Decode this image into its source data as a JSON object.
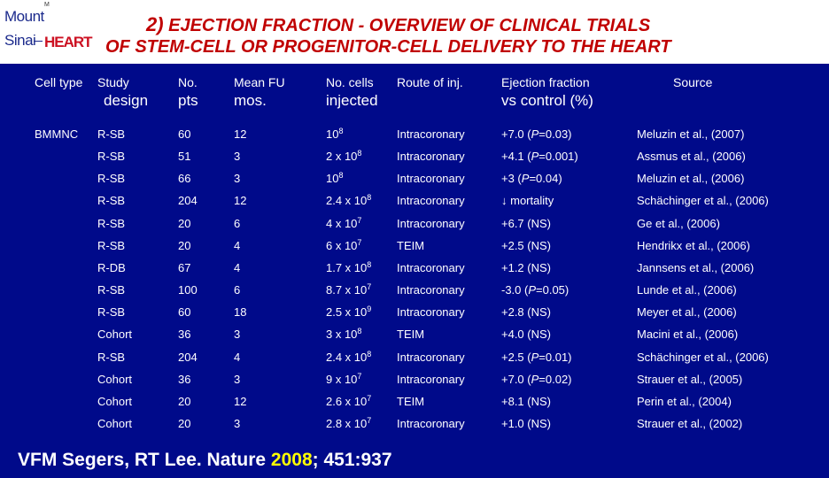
{
  "logo": {
    "trademark": "M",
    "line1": "Mount",
    "line2": "Sinai",
    "brand": "HEART"
  },
  "title": {
    "line1_number": "2)",
    "line1_text": "EJECTION FRACTION - OVERVIEW OF CLINICAL TRIALS",
    "line2": "OF STEM-CELL OR  PROGENITOR-CELL DELIVERY TO THE HEART"
  },
  "columns": {
    "cell_type": "Cell type",
    "study": "Study",
    "study_2": "design",
    "no": "No.",
    "no_2": "pts",
    "mean_fu": "Mean FU",
    "mean_fu_2": "mos.",
    "no_cells": "No. cells",
    "no_cells_2": "injected",
    "route": "Route of inj.",
    "ef": "Ejection fraction",
    "ef_2": "vs control (%)",
    "source": "Source"
  },
  "cell_type_value": "BMMNC",
  "rows": [
    {
      "design": "R-SB",
      "pts": "60",
      "fu": "12",
      "cells_base": "10",
      "cells_exp": "8",
      "route": "Intracoronary",
      "ef_pre": "+7.0 (",
      "ef_p": "P",
      "ef_post": "=0.03)",
      "source": "Meluzin et al., (2007)"
    },
    {
      "design": "R-SB",
      "pts": "51",
      "fu": "3",
      "cells_base": "2 x 10",
      "cells_exp": "8",
      "route": "Intracoronary",
      "ef_pre": "+4.1 (",
      "ef_p": "P",
      "ef_post": "=0.001)",
      "source": "Assmus et al., (2006)"
    },
    {
      "design": "R-SB",
      "pts": "66",
      "fu": "3",
      "cells_base": "10",
      "cells_exp": "8",
      "route": "Intracoronary",
      "ef_pre": "+3 (",
      "ef_p": "P",
      "ef_post": "=0.04)",
      "source": "Meluzin et al., (2006)"
    },
    {
      "design": "R-SB",
      "pts": "204",
      "fu": "12",
      "cells_base": "2.4 x 10",
      "cells_exp": "8",
      "route": "Intracoronary",
      "ef_pre": "↓ mortality",
      "ef_p": "",
      "ef_post": "",
      "source": "Schächinger et al., (2006)"
    },
    {
      "design": "R-SB",
      "pts": "20",
      "fu": "6",
      "cells_base": "4 x 10",
      "cells_exp": "7",
      "route": "Intracoronary",
      "ef_pre": "+6.7 (NS)",
      "ef_p": "",
      "ef_post": "",
      "source": "Ge et al., (2006)"
    },
    {
      "design": "R-SB",
      "pts": "20",
      "fu": "4",
      "cells_base": "6 x 10",
      "cells_exp": "7",
      "route": "TEIM",
      "ef_pre": "+2.5 (NS)",
      "ef_p": "",
      "ef_post": "",
      "source": "Hendrikx et al., (2006)"
    },
    {
      "design": "R-DB",
      "pts": "67",
      "fu": "4",
      "cells_base": "1.7 x 10",
      "cells_exp": "8",
      "route": "Intracoronary",
      "ef_pre": "+1.2 (NS)",
      "ef_p": "",
      "ef_post": "",
      "source": "Jannsens et al., (2006)"
    },
    {
      "design": "R-SB",
      "pts": "100",
      "fu": "6",
      "cells_base": "8.7 x 10",
      "cells_exp": "7",
      "route": "Intracoronary",
      "ef_pre": "-3.0 (",
      "ef_p": "P",
      "ef_post": "=0.05)",
      "source": "Lunde et al., (2006)"
    },
    {
      "design": "R-SB",
      "pts": "60",
      "fu": "18",
      "cells_base": "2.5 x 10",
      "cells_exp": "9",
      "route": "Intracoronary",
      "ef_pre": "+2.8 (NS)",
      "ef_p": "",
      "ef_post": "",
      "source": "Meyer et al., (2006)"
    },
    {
      "design": "Cohort",
      "pts": "36",
      "fu": "3",
      "cells_base": "3 x 10",
      "cells_exp": "8",
      "route": "TEIM",
      "ef_pre": "+4.0 (NS)",
      "ef_p": "",
      "ef_post": "",
      "source": "Macini et al., (2006)"
    },
    {
      "design": "R-SB",
      "pts": "204",
      "fu": "4",
      "cells_base": "2.4 x 10",
      "cells_exp": "8",
      "route": "Intracoronary",
      "ef_pre": "+2.5 (",
      "ef_p": "P",
      "ef_post": "=0.01)",
      "source": "Schächinger et al., (2006)"
    },
    {
      "design": "Cohort",
      "pts": "36",
      "fu": "3",
      "cells_base": "9 x 10",
      "cells_exp": "7",
      "route": "Intracoronary",
      "ef_pre": "+7.0 (",
      "ef_p": "P",
      "ef_post": "=0.02)",
      "source": "Strauer et al., (2005)"
    },
    {
      "design": "Cohort",
      "pts": "20",
      "fu": "12",
      "cells_base": "2.6 x 10",
      "cells_exp": "7",
      "route": "TEIM",
      "ef_pre": "+8.1 (NS)",
      "ef_p": "",
      "ef_post": "",
      "source": " Perin et al., (2004)"
    },
    {
      "design": "Cohort",
      "pts": "20",
      "fu": "3",
      "cells_base": "2.8 x 10",
      "cells_exp": "7",
      "route": "Intracoronary",
      "ef_pre": "+1.0 (NS)",
      "ef_p": "",
      "ef_post": "",
      "source": " Strauer et al., (2002)"
    }
  ],
  "citation": {
    "pre": "VFM Segers, RT Lee.  Nature ",
    "year": "2008",
    "post": "; 451:937"
  },
  "colors": {
    "background": "#000a8a",
    "title": "#c00000",
    "year": "#ffff00"
  }
}
